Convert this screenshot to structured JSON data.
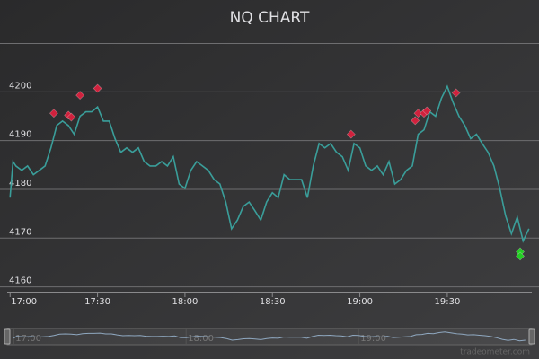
{
  "chart_data": {
    "type": "line",
    "title": "NQ CHART",
    "credits": "tradeometer.com",
    "xlim": [
      "16:59",
      "19:59"
    ],
    "xticks": [
      "17:00",
      "17:30",
      "18:00",
      "18:30",
      "19:00",
      "19:30"
    ],
    "ylim": [
      4159,
      4210
    ],
    "yticks": [
      4160,
      4170,
      4180,
      4190,
      4200
    ],
    "grid": true,
    "series": [
      {
        "type": "line",
        "color": "#3a9e9a",
        "x": [
          "17:00",
          "17:01",
          "17:02",
          "17:04",
          "17:06",
          "17:08",
          "17:10",
          "17:12",
          "17:14",
          "17:16",
          "17:18",
          "17:20",
          "17:22",
          "17:24",
          "17:26",
          "17:28",
          "17:30",
          "17:32",
          "17:34",
          "17:36",
          "17:38",
          "17:40",
          "17:42",
          "17:44",
          "17:46",
          "17:48",
          "17:50",
          "17:52",
          "17:54",
          "17:56",
          "17:58",
          "18:00",
          "18:02",
          "18:04",
          "18:06",
          "18:08",
          "18:10",
          "18:12",
          "18:14",
          "18:16",
          "18:18",
          "18:20",
          "18:22",
          "18:24",
          "18:26",
          "18:28",
          "18:30",
          "18:32",
          "18:34",
          "18:36",
          "18:38",
          "18:40",
          "18:42",
          "18:44",
          "18:46",
          "18:48",
          "18:50",
          "18:52",
          "18:54",
          "18:56",
          "18:58",
          "19:00",
          "19:02",
          "19:04",
          "19:06",
          "19:08",
          "19:10",
          "19:12",
          "19:14",
          "19:16",
          "19:18",
          "19:20",
          "19:22",
          "19:24",
          "19:26",
          "19:28",
          "19:30",
          "19:32",
          "19:34",
          "19:36",
          "19:38",
          "19:40",
          "19:42",
          "19:44",
          "19:46",
          "19:48",
          "19:50",
          "19:52",
          "19:54",
          "19:56",
          "19:58"
        ],
        "values": [
          4178.3,
          4185.7,
          4184.8,
          4183.9,
          4184.8,
          4183.0,
          4183.9,
          4184.8,
          4188.5,
          4193.1,
          4194.0,
          4193.1,
          4191.3,
          4195.0,
          4195.9,
          4195.9,
          4196.9,
          4194.0,
          4194.0,
          4190.4,
          4187.6,
          4188.5,
          4187.6,
          4188.5,
          4185.7,
          4184.8,
          4184.8,
          4185.7,
          4184.8,
          4186.7,
          4181.1,
          4180.2,
          4183.9,
          4185.7,
          4184.8,
          4183.9,
          4182.0,
          4181.1,
          4177.4,
          4171.9,
          4173.7,
          4176.5,
          4177.4,
          4175.6,
          4173.7,
          4177.4,
          4179.3,
          4178.3,
          4183.0,
          4182.0,
          4182.0,
          4182.0,
          4178.3,
          4184.8,
          4189.4,
          4188.5,
          4189.4,
          4187.6,
          4186.7,
          4183.9,
          4189.4,
          4188.5,
          4184.8,
          4183.9,
          4184.8,
          4183.0,
          4185.7,
          4181.1,
          4182.0,
          4183.9,
          4184.8,
          4191.3,
          4192.2,
          4195.9,
          4195.0,
          4198.7,
          4201.1,
          4197.8,
          4195.0,
          4193.1,
          4190.4,
          4191.3,
          4189.4,
          4187.6,
          4184.8,
          4180.2,
          4174.6,
          4170.9,
          4174.3,
          4169.4,
          4171.9
        ]
      },
      {
        "type": "scatter",
        "marker": "diamond",
        "color": "#d0213d",
        "x": [
          "17:15",
          "17:20",
          "17:21",
          "17:24",
          "17:30",
          "18:57",
          "19:19",
          "19:20",
          "19:22",
          "19:23",
          "19:33"
        ],
        "values": [
          4195.6,
          4195.2,
          4194.8,
          4199.3,
          4200.7,
          4191.3,
          4194.1,
          4195.6,
          4195.6,
          4196.1,
          4199.8
        ]
      },
      {
        "type": "scatter",
        "marker": "diamond",
        "color": "#22cc22",
        "x": [
          "19:55",
          "19:55"
        ],
        "values": [
          4167.2,
          4166.3
        ]
      }
    ]
  }
}
